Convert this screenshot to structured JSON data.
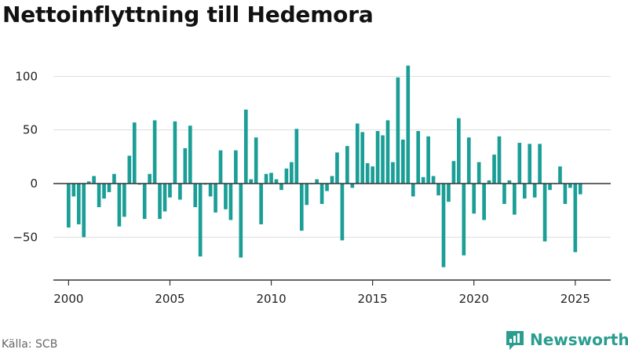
{
  "title": "Nettoinflyttning till Hedemora",
  "source": "Källa: SCB",
  "brand": {
    "name": "Newsworthy",
    "color": "#2a9d8f"
  },
  "chart_data": {
    "type": "bar",
    "title": "Nettoinflyttning till Hedemora",
    "xlabel": "",
    "ylabel": "",
    "xlim": [
      1999.25,
      2026.75
    ],
    "ylim": [
      -90,
      120
    ],
    "x_ticks": [
      {
        "value": 2000,
        "label": "2000"
      },
      {
        "value": 2005,
        "label": "2005"
      },
      {
        "value": 2010,
        "label": "2010"
      },
      {
        "value": 2015,
        "label": "2015"
      },
      {
        "value": 2020,
        "label": "2020"
      },
      {
        "value": 2025,
        "label": "2025"
      }
    ],
    "y_ticks": [
      {
        "value": 100,
        "label": "100"
      },
      {
        "value": 50,
        "label": "50"
      },
      {
        "value": 0,
        "label": "0"
      },
      {
        "value": -50,
        "label": "−50"
      }
    ],
    "grid": true,
    "bar_color": "#1a9e96",
    "start_quarter": "2000 Q1",
    "values": [
      -41,
      -12,
      -38,
      -50,
      2,
      7,
      -22,
      -14,
      -8,
      9,
      -40,
      -31,
      26,
      57,
      -1,
      -33,
      9,
      59,
      -33,
      -26,
      -13,
      58,
      -15,
      33,
      54,
      -22,
      -68,
      -1,
      -12,
      -27,
      31,
      -24,
      -34,
      31,
      -69,
      69,
      4,
      43,
      -38,
      9,
      10,
      4,
      -6,
      14,
      20,
      51,
      -44,
      -20,
      0,
      4,
      -19,
      -7,
      7,
      29,
      -53,
      35,
      -4,
      56,
      48,
      19,
      16,
      49,
      45,
      59,
      20,
      99,
      41,
      110,
      -12,
      49,
      6,
      44,
      7,
      -11,
      -78,
      -17,
      21,
      61,
      -67,
      43,
      -28,
      20,
      -34,
      3,
      27,
      44,
      -19,
      3,
      -29,
      38,
      -14,
      37,
      -13,
      37,
      -54,
      -6,
      0,
      16,
      -19,
      -4,
      -64,
      -10
    ]
  }
}
